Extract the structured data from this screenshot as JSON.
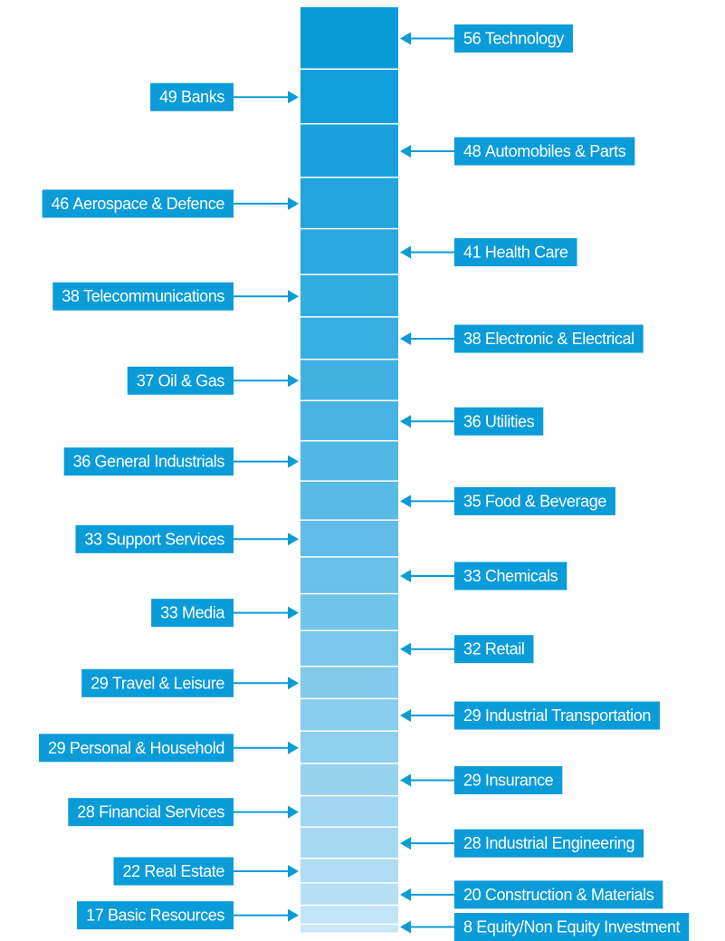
{
  "chart_data": {
    "type": "stack",
    "categories": [
      "Technology",
      "Banks",
      "Automobiles & Parts",
      "Aerospace & Defence",
      "Health Care",
      "Telecommunications",
      "Electronic & Electrical",
      "Oil & Gas",
      "Utilities",
      "General Industrials",
      "Food & Beverage",
      "Support Services",
      "Chemicals",
      "Media",
      "Retail",
      "Travel & Leisure",
      "Industrial Transportation",
      "Personal & Household",
      "Insurance",
      "Financial Services",
      "Industrial Engineering",
      "Real Estate",
      "Construction & Materials",
      "Basic Resources",
      "Equity/Non Equity Investment"
    ],
    "values": [
      56,
      49,
      48,
      46,
      41,
      38,
      38,
      37,
      36,
      36,
      35,
      33,
      33,
      33,
      32,
      29,
      29,
      29,
      29,
      28,
      28,
      22,
      20,
      17,
      8
    ],
    "colors": [
      "#0a9bd9",
      "#129eda",
      "#1aa1dc",
      "#22a4dd",
      "#2aa7de",
      "#32abdf",
      "#39aee1",
      "#41b1e2",
      "#49b4e3",
      "#51b7e5",
      "#59bae6",
      "#61bde7",
      "#69c0e8",
      "#71c4ea",
      "#79c7eb",
      "#81caec",
      "#89cdee",
      "#90d0ef",
      "#98d3f0",
      "#a0d6f2",
      "#a8d9f3",
      "#b0ddf4",
      "#b8e0f5",
      "#c0e3f7",
      "#c8e6f8"
    ],
    "label_color": "#0a9bd9"
  }
}
